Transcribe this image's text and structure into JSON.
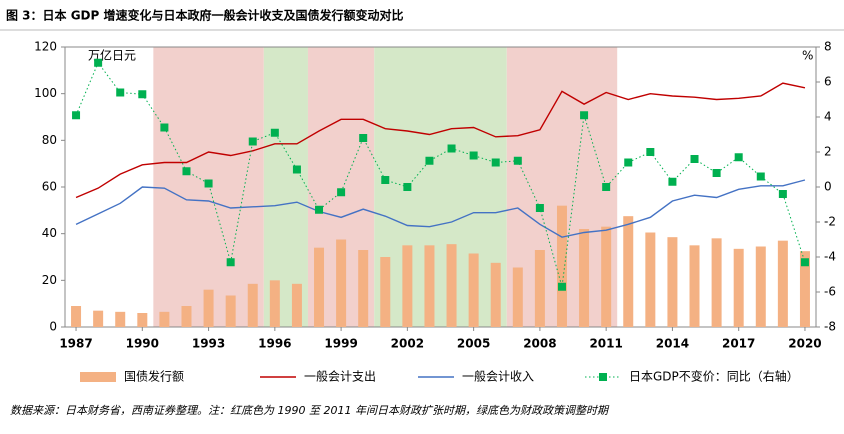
{
  "chart_data": {
    "type": "combo",
    "title": "图 3：日本 GDP 增速变化与日本政府一般会计收支及国债发行额变动对比",
    "y_label": "万亿日元",
    "y2_label": "%",
    "source": "数据来源：日本财务省，西南证券整理。注：红底色为 1990 至 2011 年间日本财政扩张时期，绿底色为财政政策调整时期",
    "x": [
      1987,
      1988,
      1989,
      1990,
      1991,
      1992,
      1993,
      1994,
      1995,
      1996,
      1997,
      1998,
      1999,
      2000,
      2001,
      2002,
      2003,
      2004,
      2005,
      2006,
      2007,
      2008,
      2009,
      2010,
      2011,
      2012,
      2013,
      2014,
      2015,
      2016,
      2017,
      2018,
      2019,
      2020
    ],
    "xlim": [
      1986.5,
      2020.5
    ],
    "xticks": [
      1987,
      1990,
      1993,
      1996,
      1999,
      2002,
      2005,
      2008,
      2011,
      2014,
      2017,
      2020
    ],
    "ylim": [
      0,
      120
    ],
    "yticks": [
      0,
      20,
      40,
      60,
      80,
      100,
      120
    ],
    "y2lim": [
      -8,
      8
    ],
    "y2ticks": [
      -8,
      -6,
      -4,
      -2,
      0,
      2,
      4,
      6,
      8
    ],
    "shading": [
      {
        "span": [
          1990.5,
          1995.5
        ],
        "color": "#f2d0cc"
      },
      {
        "span": [
          1995.5,
          1997.5
        ],
        "color": "#d5e8c8"
      },
      {
        "span": [
          1997.5,
          2000.5
        ],
        "color": "#f2d0cc"
      },
      {
        "span": [
          2000.5,
          2006.5
        ],
        "color": "#d5e8c8"
      },
      {
        "span": [
          2006.5,
          2011.5
        ],
        "color": "#f2d0cc"
      }
    ],
    "series": [
      {
        "name": "国债发行额",
        "kind": "bar",
        "color": "#f4b183",
        "values": [
          9,
          7,
          6.5,
          6,
          6.5,
          9,
          16,
          13.5,
          18.5,
          20,
          18.5,
          34,
          37.5,
          33,
          30,
          35,
          35,
          35.5,
          31.5,
          27.5,
          25.5,
          33,
          52,
          42,
          43,
          47.5,
          40.5,
          38.5,
          35,
          38,
          33.5,
          34.5,
          37,
          32.5
        ]
      },
      {
        "name": "一般会计支出",
        "kind": "line",
        "color": "#c00000",
        "values": [
          55.5,
          59.5,
          65.5,
          69.5,
          70.5,
          70.5,
          75,
          73.5,
          75.5,
          78.5,
          78.5,
          84,
          89,
          89,
          85,
          84,
          82.5,
          85,
          85.5,
          81.5,
          82,
          84.5,
          101,
          95.5,
          100.5,
          97.5,
          100,
          99,
          98.5,
          97.5,
          98,
          99,
          104.5,
          102.5
        ]
      },
      {
        "name": "一般会计收入",
        "kind": "line",
        "color": "#4472c4",
        "values": [
          44,
          48.5,
          53,
          60,
          59.5,
          54.5,
          54,
          51,
          51.5,
          52,
          53.5,
          49.5,
          47,
          50.5,
          47.5,
          43.5,
          43,
          45,
          49,
          49,
          51,
          44,
          38.5,
          40.5,
          41.5,
          44,
          47,
          54,
          56.5,
          55.5,
          59,
          60.5,
          60.5,
          63
        ]
      },
      {
        "name": "日本GDP不变价：同比（右轴）",
        "kind": "dotted",
        "axis": "y2",
        "color": "#00b050",
        "values": [
          4.1,
          7.1,
          5.4,
          5.3,
          3.4,
          0.9,
          0.2,
          -4.3,
          2.6,
          3.1,
          1.0,
          -1.3,
          -0.3,
          2.8,
          0.4,
          0.0,
          1.5,
          2.2,
          1.8,
          1.4,
          1.5,
          -1.2,
          -5.7,
          4.1,
          0.0,
          1.4,
          2.0,
          0.3,
          1.6,
          0.8,
          1.7,
          0.6,
          -0.4,
          -4.3
        ]
      }
    ]
  }
}
